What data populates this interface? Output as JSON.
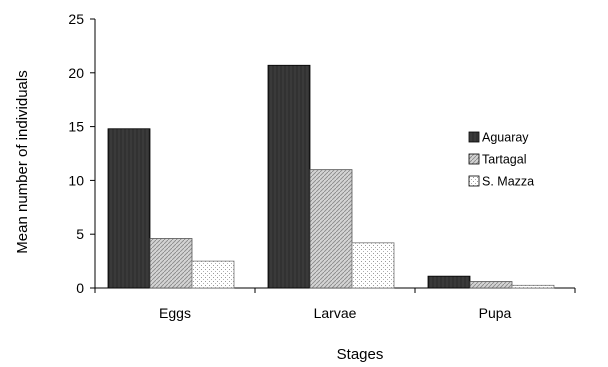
{
  "chart_data": {
    "type": "bar",
    "title": "",
    "xlabel": "Stages",
    "ylabel": "Mean number of individuals",
    "categories": [
      "Eggs",
      "Larvae",
      "Pupa"
    ],
    "ylim": [
      0,
      25
    ],
    "yticks": [
      0,
      5,
      10,
      15,
      20,
      25
    ],
    "grid": false,
    "legend_position": "right",
    "series": [
      {
        "name": "Aguaray",
        "values": [
          14.8,
          20.7,
          1.1
        ],
        "color": "#3a3a3a",
        "pattern": "dark-vertical-stripes"
      },
      {
        "name": "Tartagal",
        "values": [
          4.6,
          11.0,
          0.6
        ],
        "color": "#c8c8c8",
        "pattern": "gray-diagonal-hatch"
      },
      {
        "name": "S. Mazza",
        "values": [
          2.5,
          4.2,
          0.25
        ],
        "color": "#ffffff",
        "pattern": "light-dots"
      }
    ]
  }
}
